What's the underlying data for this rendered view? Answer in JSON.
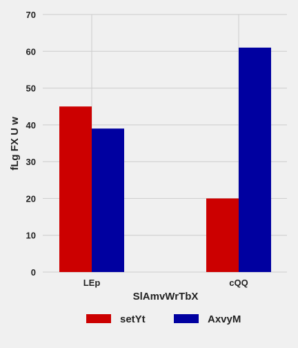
{
  "chart_data": {
    "type": "bar",
    "categories": [
      "LEp",
      "cQQ"
    ],
    "series": [
      {
        "name": "setYt",
        "values": [
          45,
          20
        ],
        "color": "#cc0000"
      },
      {
        "name": "AxvyM",
        "values": [
          39,
          61
        ],
        "color": "#0000a0"
      }
    ],
    "xlabel": "SlAmvWrTbX",
    "ylabel": "fLg FX U w",
    "ylim": [
      0,
      70
    ],
    "yticks": [
      0,
      10,
      20,
      30,
      40,
      50,
      60,
      70
    ],
    "grid": true,
    "legend_position": "bottom"
  }
}
